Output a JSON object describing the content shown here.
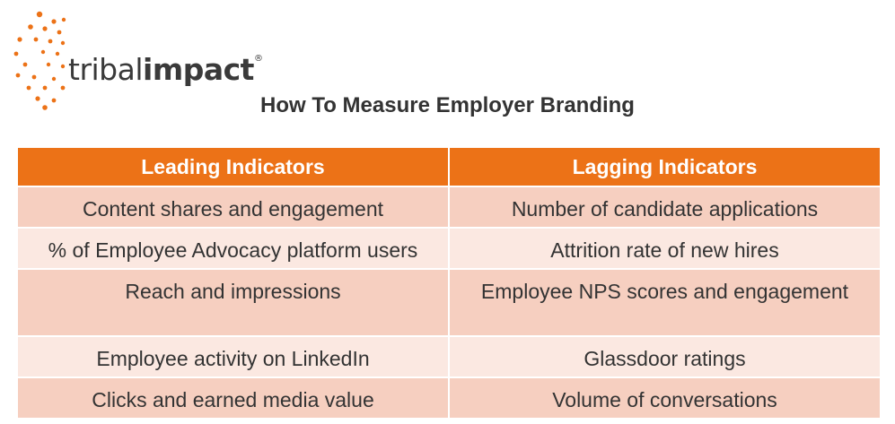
{
  "logo": {
    "brand_light": "tribal",
    "brand_bold": "impact",
    "trademark": "®",
    "dot_color": "#ec7217"
  },
  "title": "How To Measure Employer Branding",
  "table": {
    "headers": [
      "Leading Indicators",
      "Lagging Indicators"
    ],
    "rows": [
      [
        "Content shares and engagement",
        "Number of candidate applications"
      ],
      [
        "% of Employee Advocacy platform users",
        "Attrition rate of new hires"
      ],
      [
        "Reach and impressions",
        "Employee NPS scores and engagement"
      ],
      [
        "Employee activity on LinkedIn",
        "Glassdoor ratings"
      ],
      [
        "Clicks and earned media value",
        "Volume of conversations"
      ]
    ],
    "header_color": "#ec7217",
    "row_color_dark": "#f6cfc0",
    "row_color_light": "#fbe8e1"
  }
}
